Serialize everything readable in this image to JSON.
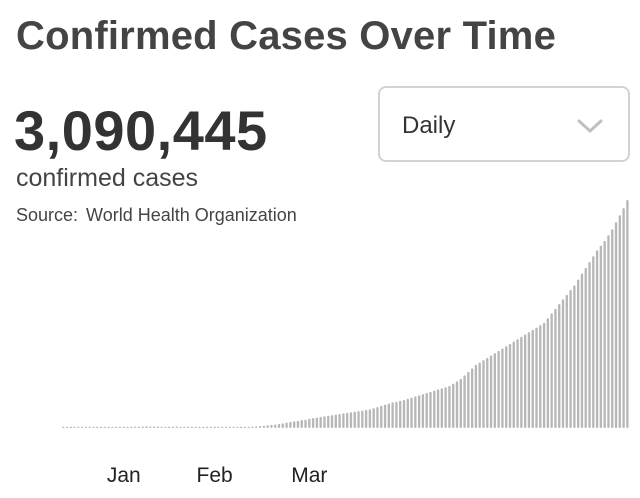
{
  "header": {
    "title": "Confirmed Cases Over Time"
  },
  "summary": {
    "total": "3,090,445",
    "total_label": "confirmed cases",
    "source_label": "Source:",
    "source_name": "World Health Organization"
  },
  "controls": {
    "interval_selected": "Daily",
    "interval_icon": "chevron-down-icon"
  },
  "colors": {
    "bars": "#b7b7b7",
    "text": "#3a3a3a",
    "border": "#d2d2d2"
  },
  "chart_data": {
    "type": "bar",
    "title": "",
    "xlabel": "",
    "ylabel": "",
    "grid": false,
    "legend": "none",
    "x_ticks": [
      {
        "label": "Jan",
        "index": 16
      },
      {
        "label": "Feb",
        "index": 40
      },
      {
        "label": "Mar",
        "index": 65
      }
    ],
    "values": [
      0,
      0,
      0,
      0,
      0,
      0,
      0,
      0,
      1,
      2,
      3,
      4,
      5,
      6,
      7,
      8,
      9,
      10,
      11,
      12,
      13,
      14,
      15,
      13,
      12,
      14,
      9,
      11,
      10,
      12,
      14,
      10,
      8,
      6,
      5,
      4,
      3,
      2,
      1,
      1,
      1,
      2,
      2,
      3,
      3,
      4,
      5,
      6,
      8,
      10,
      12,
      14,
      17,
      20,
      23,
      27,
      30,
      35,
      40,
      46,
      52,
      58,
      62,
      68,
      72,
      80,
      85,
      90,
      95,
      100,
      105,
      110,
      115,
      120,
      126,
      130,
      135,
      140,
      145,
      150,
      155,
      160,
      170,
      180,
      190,
      200,
      210,
      220,
      225,
      233,
      240,
      250,
      260,
      270,
      280,
      290,
      300,
      310,
      320,
      330,
      340,
      350,
      360,
      380,
      400,
      420,
      450,
      480,
      510,
      540,
      560,
      580,
      600,
      620,
      640,
      660,
      680,
      700,
      720,
      740,
      760,
      780,
      800,
      820,
      840,
      860,
      880,
      900,
      940,
      980,
      1020,
      1060,
      1100,
      1140,
      1180,
      1220,
      1270,
      1320,
      1370,
      1420,
      1470,
      1520,
      1560,
      1600,
      1650,
      1700,
      1760,
      1820,
      1880,
      1950
    ],
    "ylim": [
      0,
      1
    ]
  }
}
